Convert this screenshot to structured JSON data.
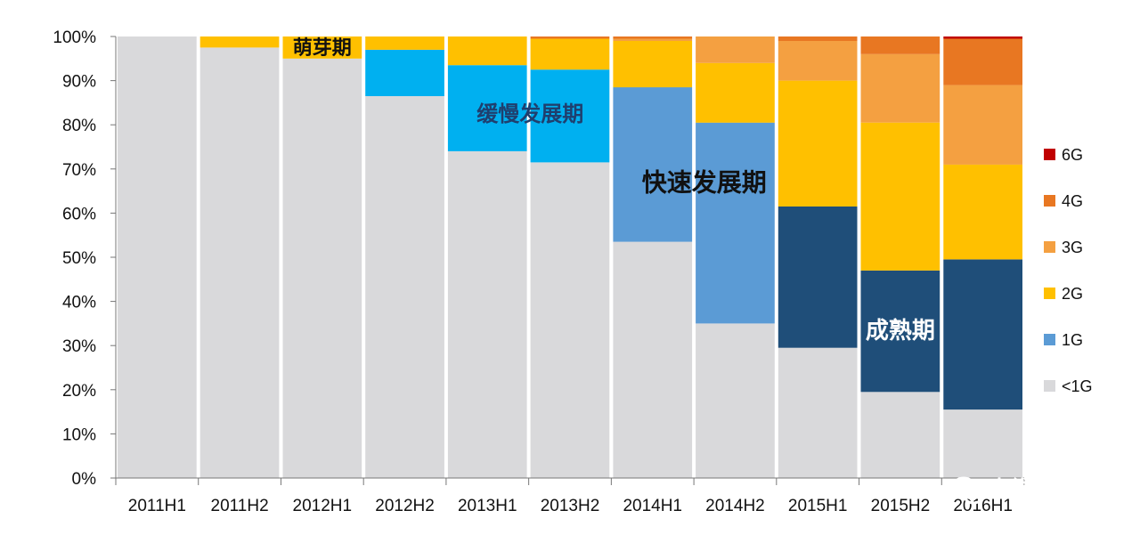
{
  "chart_data": {
    "type": "bar",
    "stacked": true,
    "normalized_percent": true,
    "categories": [
      "2011H1",
      "2011H2",
      "2012H1",
      "2012H2",
      "2013H1",
      "2013H2",
      "2014H1",
      "2014H2",
      "2015H1",
      "2015H2",
      "2016H1"
    ],
    "series": [
      {
        "name": "<1G",
        "color": "#d9d9db",
        "values": [
          100,
          97.5,
          95,
          86.5,
          74,
          71.5,
          53.5,
          35,
          29.5,
          19.5,
          15.5
        ]
      },
      {
        "name": "1G",
        "color": "#5b9bd5",
        "colors_by_category": [
          "#5b9bd5",
          "#5b9bd5",
          "#5b9bd5",
          "#00b0f0",
          "#00b0f0",
          "#00b0f0",
          "#5b9bd5",
          "#5b9bd5",
          "#1f4e79",
          "#1f4e79",
          "#1f4e79"
        ],
        "values": [
          0,
          0,
          0,
          10.5,
          19.5,
          21,
          35,
          45.5,
          32,
          27.5,
          34
        ]
      },
      {
        "name": "2G",
        "color": "#ffc000",
        "values": [
          0,
          2.5,
          5,
          3,
          6.5,
          7,
          10.5,
          13.5,
          28.5,
          33.5,
          21.5
        ]
      },
      {
        "name": "3G",
        "color": "#f4a041",
        "values": [
          0,
          0,
          0,
          0,
          0,
          0,
          0.5,
          6,
          9,
          15.5,
          18
        ]
      },
      {
        "name": "4G",
        "color": "#e87722",
        "values": [
          0,
          0,
          0,
          0,
          0,
          0.5,
          0.5,
          0,
          1,
          4,
          10.5
        ]
      },
      {
        "name": "6G",
        "color": "#c00000",
        "values": [
          0,
          0,
          0,
          0,
          0,
          0,
          0,
          0,
          0,
          0,
          0.5
        ]
      }
    ],
    "y_ticks": [
      "0%",
      "10%",
      "20%",
      "30%",
      "40%",
      "50%",
      "60%",
      "70%",
      "80%",
      "90%",
      "100%"
    ],
    "ylim": [
      0,
      100
    ],
    "grid": false,
    "legend_position": "right",
    "legend_order": [
      "6G",
      "4G",
      "3G",
      "2G",
      "1G",
      "<1G"
    ],
    "annotations": [
      {
        "text": "萌芽期",
        "category": "2012H1",
        "y": 97.5,
        "color": "#111111"
      },
      {
        "text": "缓慢发展期",
        "category": "2013H1",
        "y": 82.5,
        "color": "#1f3f6e"
      },
      {
        "text": "快速发展期",
        "category": "2014H1",
        "y": 67,
        "color": "#111111"
      },
      {
        "text": "成熟期",
        "category": "2015H2",
        "y": 33.5,
        "color": "#ffffff"
      }
    ]
  },
  "watermark": {
    "text": "奥维云网",
    "icon": "wechat-icon"
  }
}
